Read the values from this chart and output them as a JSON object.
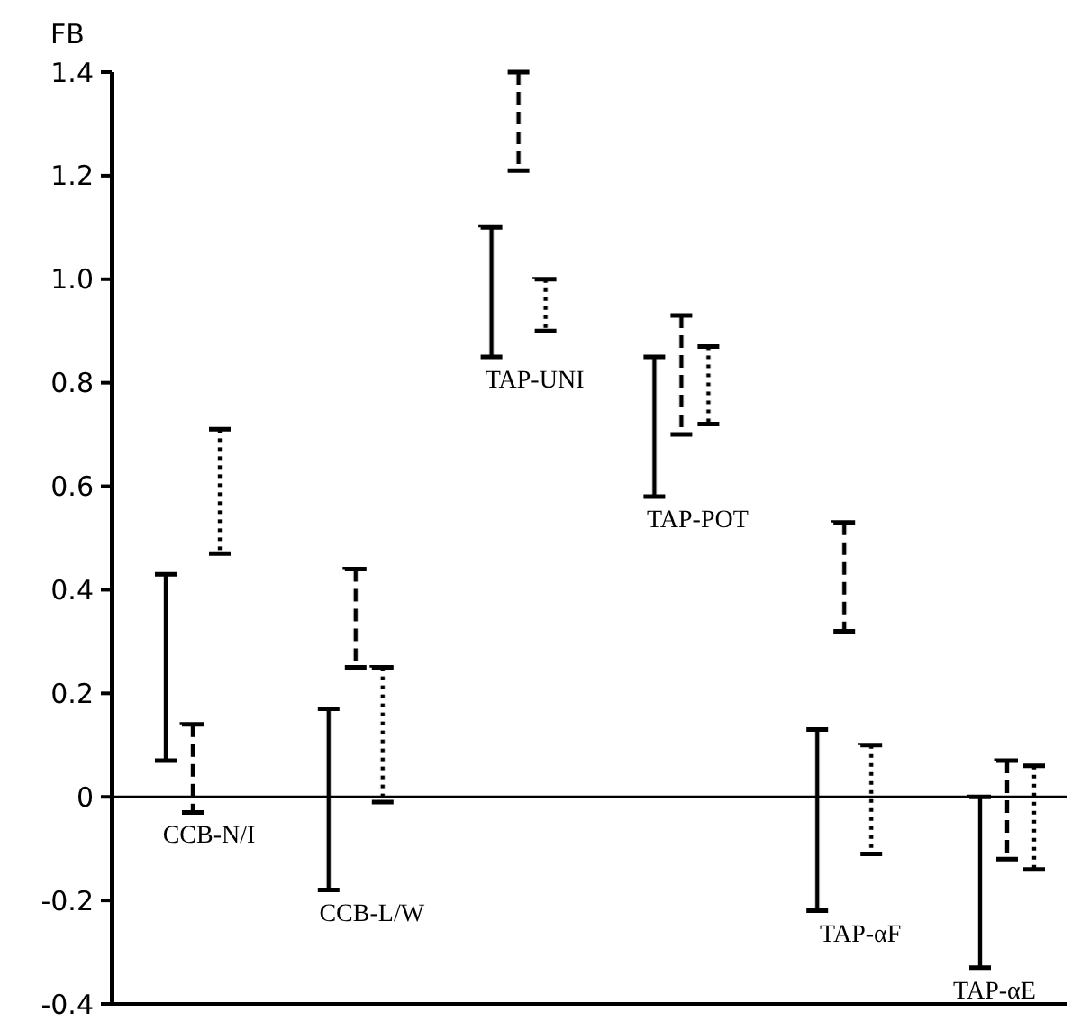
{
  "chart_data": {
    "type": "bar",
    "ylabel": "FB",
    "categories": [
      "CCB-N/I",
      "CCB-L/W",
      "TAP-UNI",
      "TAP-POT",
      "TAP-αF",
      "TAP-αE"
    ],
    "series": [
      {
        "color": "#000000",
        "line_style": "solid",
        "base": [
          0.07,
          -0.18,
          0.85,
          0.58,
          -0.22,
          -0.33
        ],
        "values": [
          0.36,
          0.35,
          0.25,
          0.27,
          0.35,
          0.33
        ]
      },
      {
        "color": "#000000",
        "line_style": "dashed",
        "base": [
          -0.03,
          0.25,
          1.21,
          0.7,
          0.32,
          -0.12
        ],
        "values": [
          0.17,
          0.19,
          0.19,
          0.23,
          0.21,
          0.19
        ]
      },
      {
        "color": "#000000",
        "line_style": "dotted",
        "base": [
          0.47,
          -0.01,
          0.9,
          0.72,
          -0.11,
          -0.14
        ],
        "values": [
          0.24,
          0.26,
          0.1,
          0.15,
          0.21,
          0.2
        ]
      }
    ],
    "ylim": [
      -0.4,
      1.4
    ],
    "yticks": [
      -0.4,
      -0.2,
      0,
      0.2,
      0.4,
      0.6,
      0.8,
      {
        "value": 1.0,
        "label": "1.0"
      },
      1.2,
      1.4
    ],
    "ref_lines": [
      {
        "axis": "y",
        "value": 0
      }
    ]
  }
}
